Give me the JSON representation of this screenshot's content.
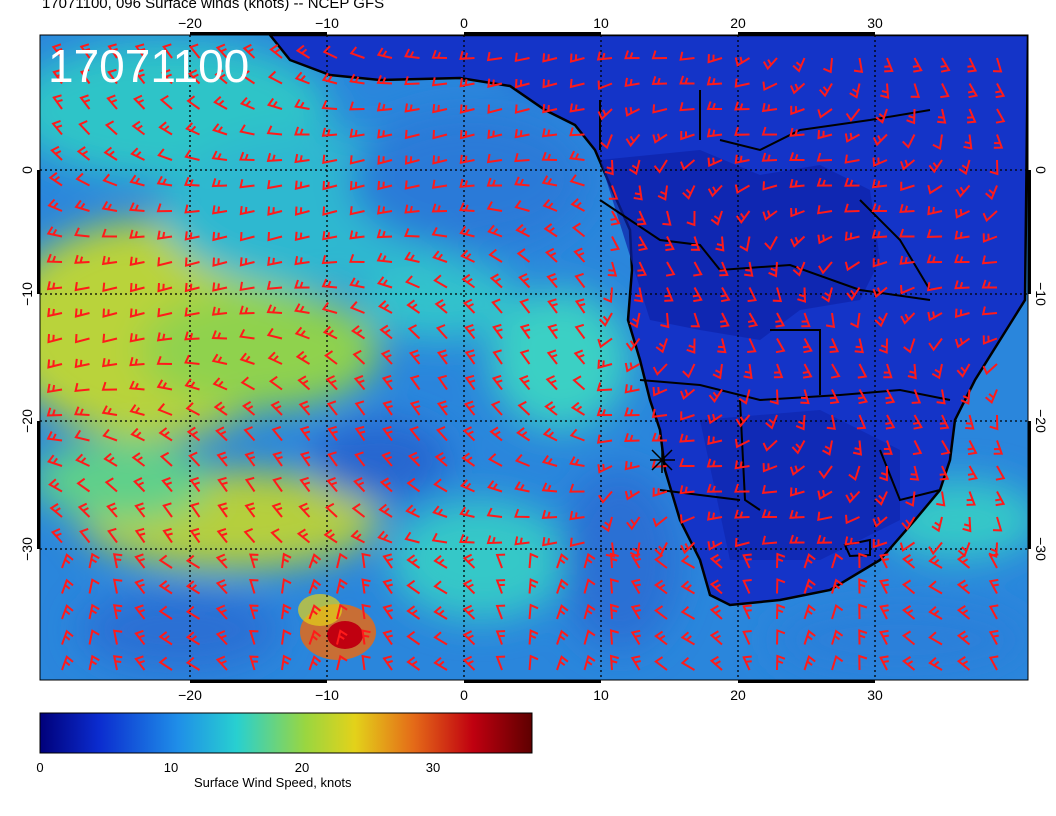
{
  "title": "17071100, 096 Surface winds (knots) -- NCEP GFS",
  "stamp": "17071100",
  "map": {
    "lon_ticks": [
      "−20",
      "−10",
      "0",
      "10",
      "20",
      "30"
    ],
    "lat_ticks_left": [
      "0",
      "−10",
      "−20",
      "−30"
    ],
    "lat_ticks_right": [
      "0",
      "−10",
      "−20",
      "−30"
    ]
  },
  "colorbar": {
    "label": "Surface Wind Speed, knots",
    "ticks": [
      "0",
      "10",
      "20",
      "30"
    ],
    "colors": [
      "#00007a",
      "#0b2ccf",
      "#1f8ee8",
      "#28d0d0",
      "#9ad640",
      "#e3d21a",
      "#e46a18",
      "#c00010",
      "#5e0000"
    ]
  },
  "colors": {
    "ocean_cyan": "#2ec4c8",
    "ocean_blue": "#2a7ad8",
    "land_blue": "#1434c8",
    "high_wind_yellow": "#c8d23a",
    "barb_red": "#ff1a1a",
    "coastline": "#000000"
  }
}
